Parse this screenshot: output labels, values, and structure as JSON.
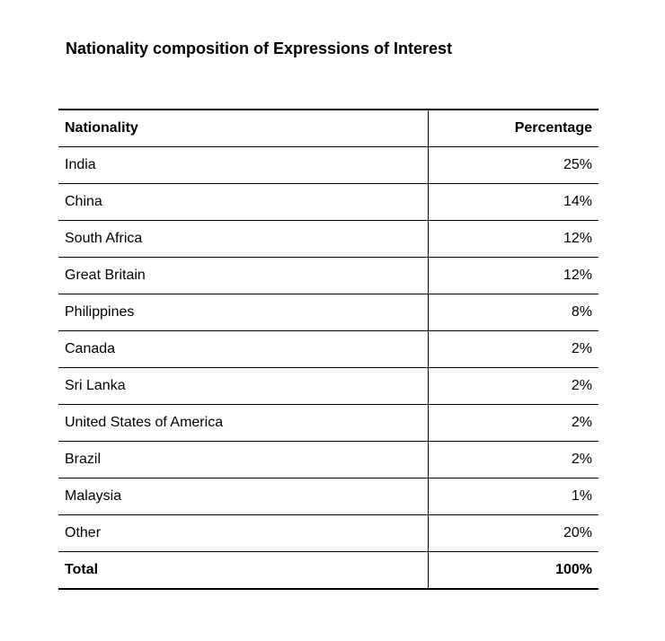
{
  "title": "Nationality composition of Expressions of Interest",
  "table": {
    "headers": {
      "nationality": "Nationality",
      "percentage": "Percentage"
    },
    "rows": [
      {
        "nationality": "India",
        "percentage": "25%"
      },
      {
        "nationality": "China",
        "percentage": "14%"
      },
      {
        "nationality": "South Africa",
        "percentage": "12%"
      },
      {
        "nationality": "Great Britain",
        "percentage": "12%"
      },
      {
        "nationality": "Philippines",
        "percentage": "8%"
      },
      {
        "nationality": "Canada",
        "percentage": "2%"
      },
      {
        "nationality": "Sri Lanka",
        "percentage": "2%"
      },
      {
        "nationality": "United States of America",
        "percentage": "2%"
      },
      {
        "nationality": "Brazil",
        "percentage": "2%"
      },
      {
        "nationality": "Malaysia",
        "percentage": "1%"
      },
      {
        "nationality": "Other",
        "percentage": "20%"
      }
    ],
    "total": {
      "label": "Total",
      "percentage": "100%"
    }
  }
}
